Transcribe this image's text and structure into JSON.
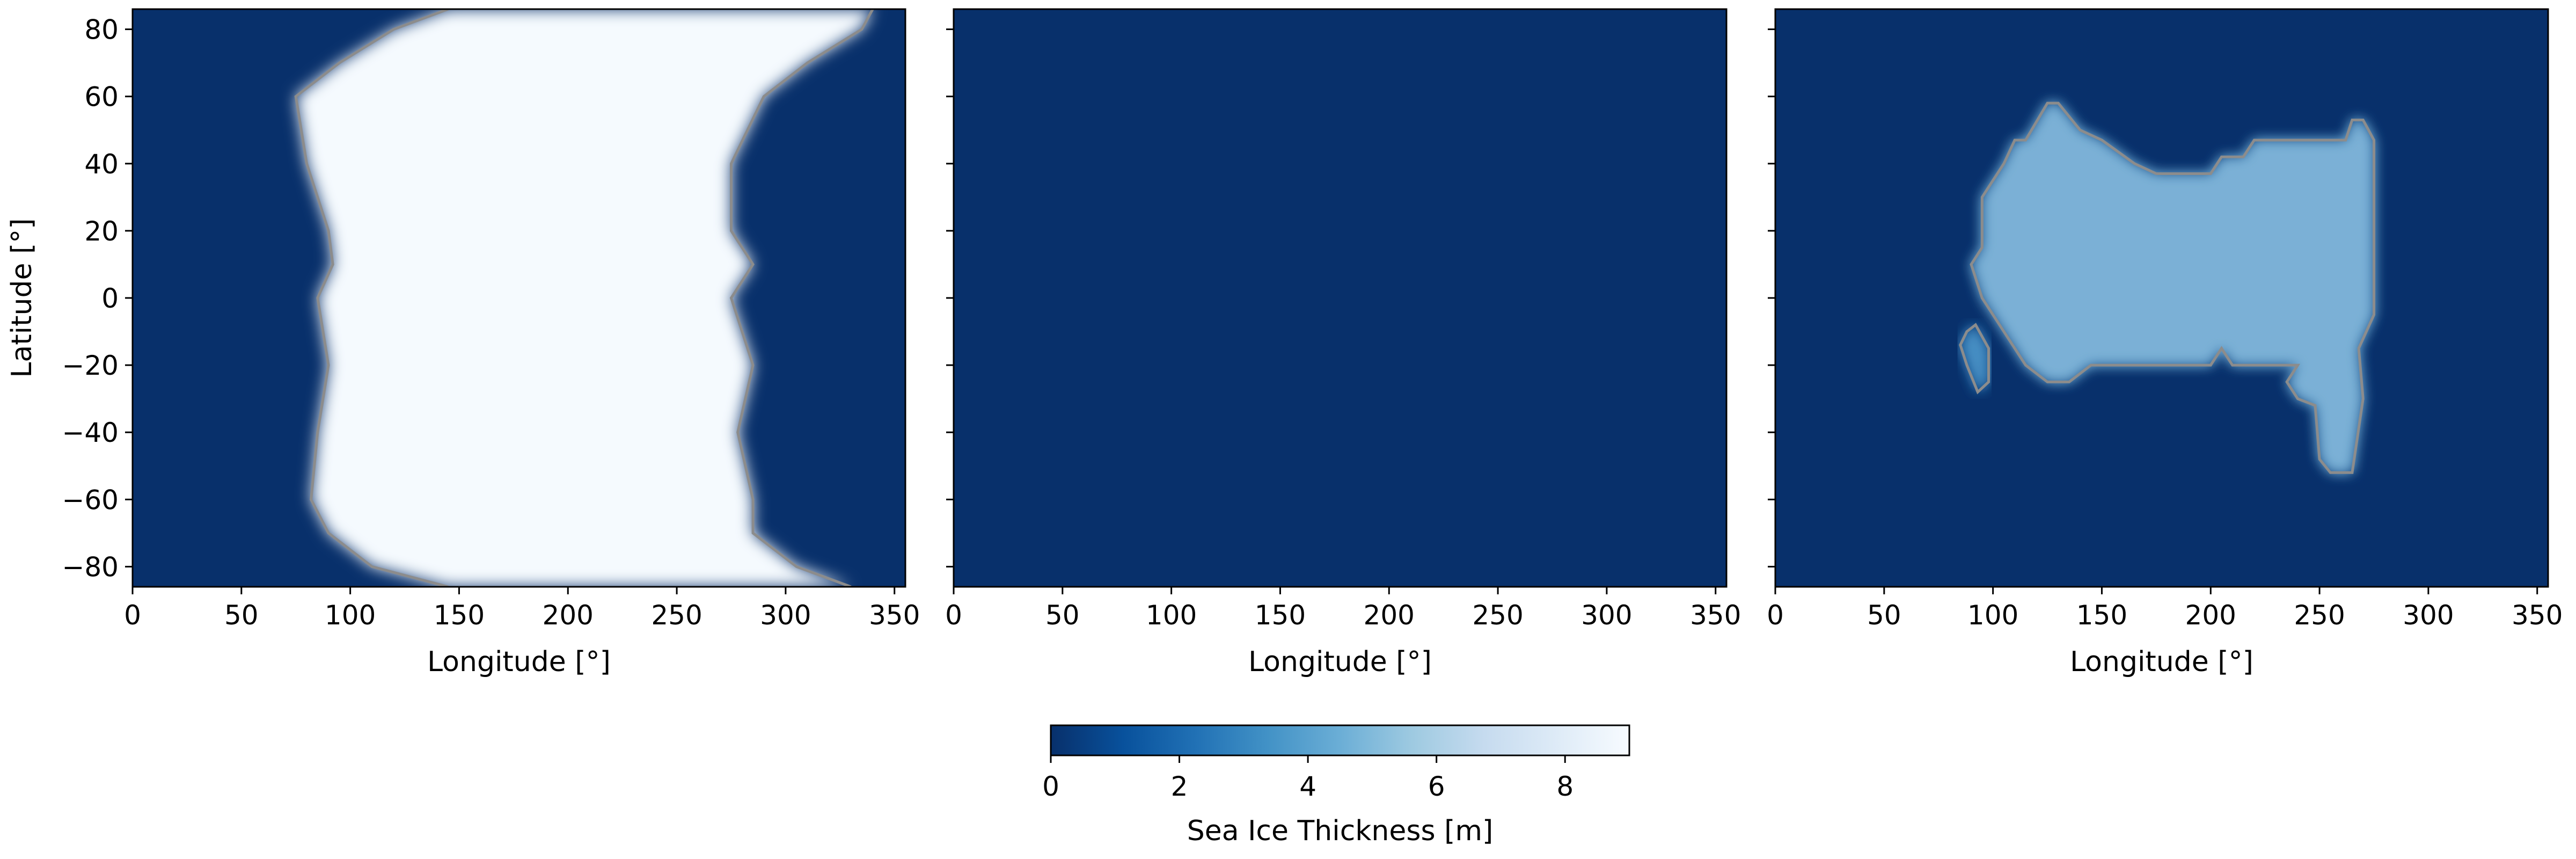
{
  "chart_data": [
    {
      "type": "heatmap",
      "panel": "left",
      "xlabel": "Longitude [°]",
      "ylabel": "Latitude [°]",
      "xlim": [
        0,
        355
      ],
      "ylim": [
        -86,
        86
      ],
      "x_ticks": [
        0,
        50,
        100,
        150,
        200,
        250,
        300,
        350
      ],
      "y_ticks": [
        -80,
        -60,
        -40,
        -20,
        0,
        20,
        40,
        60,
        80
      ],
      "colormap": "Blues_r",
      "value_range": [
        0,
        9
      ],
      "background_value": 0,
      "ice_region": {
        "value": 8.9,
        "latitude_range": [
          -86,
          86
        ],
        "west_edge": [
          [
            -86,
            145
          ],
          [
            -80,
            110
          ],
          [
            -70,
            90
          ],
          [
            -60,
            82
          ],
          [
            -40,
            85
          ],
          [
            -20,
            90
          ],
          [
            0,
            85
          ],
          [
            10,
            92
          ],
          [
            20,
            90
          ],
          [
            40,
            80
          ],
          [
            60,
            75
          ],
          [
            70,
            95
          ],
          [
            80,
            120
          ],
          [
            86,
            145
          ]
        ],
        "east_edge": [
          [
            -86,
            330
          ],
          [
            -80,
            305
          ],
          [
            -70,
            285
          ],
          [
            -60,
            285
          ],
          [
            -40,
            278
          ],
          [
            -20,
            285
          ],
          [
            0,
            275
          ],
          [
            10,
            285
          ],
          [
            20,
            275
          ],
          [
            40,
            275
          ],
          [
            60,
            290
          ],
          [
            70,
            310
          ],
          [
            80,
            335
          ],
          [
            86,
            340
          ]
        ]
      },
      "contour_color": "#8c8c8c"
    },
    {
      "type": "heatmap",
      "panel": "middle",
      "xlabel": "Longitude [°]",
      "ylabel": "",
      "xlim": [
        0,
        355
      ],
      "ylim": [
        -86,
        86
      ],
      "x_ticks": [
        0,
        50,
        100,
        150,
        200,
        250,
        300,
        350
      ],
      "y_ticks": [
        -80,
        -60,
        -40,
        -20,
        0,
        20,
        40,
        60,
        80
      ],
      "colormap": "Blues_r",
      "value_range": [
        0,
        9
      ],
      "background_value": 0
    },
    {
      "type": "heatmap",
      "panel": "right",
      "xlabel": "Longitude [°]",
      "ylabel": "",
      "xlim": [
        0,
        355
      ],
      "ylim": [
        -86,
        86
      ],
      "x_ticks": [
        0,
        50,
        100,
        150,
        200,
        250,
        300,
        350
      ],
      "y_ticks": [
        -80,
        -60,
        -40,
        -20,
        0,
        20,
        40,
        60,
        80
      ],
      "colormap": "Blues_r",
      "value_range": [
        0,
        9
      ],
      "background_value": 0,
      "ice_patches": [
        {
          "value_peak": 6.2,
          "value_edge": 3.0,
          "outline": [
            [
              95,
              20
            ],
            [
              95,
              30
            ],
            [
              105,
              40
            ],
            [
              110,
              47
            ],
            [
              115,
              47
            ],
            [
              125,
              58
            ],
            [
              130,
              58
            ],
            [
              140,
              50
            ],
            [
              150,
              47
            ],
            [
              165,
              40
            ],
            [
              175,
              37
            ],
            [
              200,
              37
            ],
            [
              205,
              42
            ],
            [
              215,
              42
            ],
            [
              220,
              47
            ],
            [
              262,
              47
            ],
            [
              265,
              53
            ],
            [
              270,
              53
            ],
            [
              275,
              47
            ],
            [
              275,
              -5
            ],
            [
              268,
              -15
            ],
            [
              270,
              -30
            ],
            [
              265,
              -52
            ],
            [
              255,
              -52
            ],
            [
              250,
              -48
            ],
            [
              248,
              -32
            ],
            [
              240,
              -30
            ],
            [
              235,
              -25
            ],
            [
              240,
              -20
            ],
            [
              210,
              -20
            ],
            [
              205,
              -15
            ],
            [
              200,
              -20
            ],
            [
              145,
              -20
            ],
            [
              135,
              -25
            ],
            [
              125,
              -25
            ],
            [
              115,
              -20
            ],
            [
              105,
              -10
            ],
            [
              95,
              0
            ],
            [
              90,
              10
            ],
            [
              95,
              15
            ],
            [
              95,
              20
            ]
          ]
        },
        {
          "value_peak": 4.5,
          "value_edge": 2.0,
          "outline": [
            [
              88,
              -10
            ],
            [
              92,
              -8
            ],
            [
              98,
              -15
            ],
            [
              98,
              -25
            ],
            [
              93,
              -28
            ],
            [
              88,
              -20
            ],
            [
              85,
              -14
            ],
            [
              88,
              -10
            ]
          ]
        }
      ],
      "contour_color": "#8c8c8c"
    }
  ],
  "colorbar": {
    "label": "Sea Ice Thickness [m]",
    "ticks": [
      0,
      2,
      4,
      6,
      8
    ],
    "range": [
      0,
      9
    ],
    "orientation": "horizontal"
  }
}
